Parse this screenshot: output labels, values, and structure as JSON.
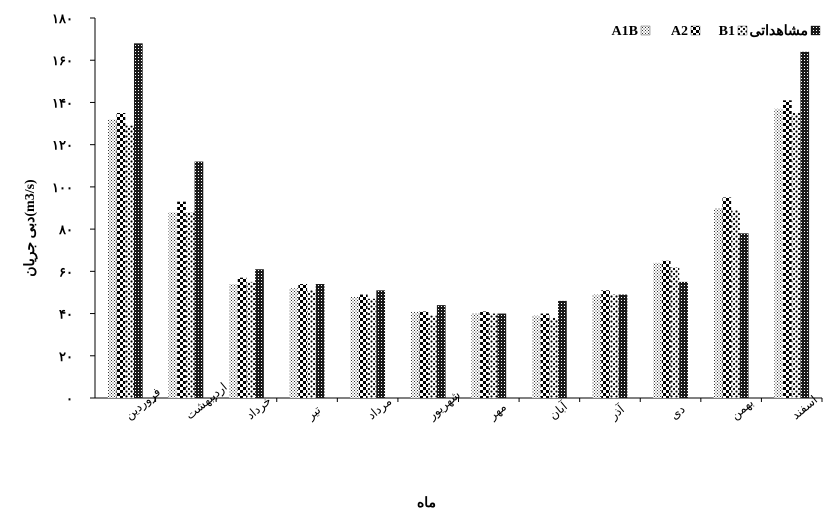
{
  "chart_data": {
    "type": "bar",
    "categories": [
      "فروردین",
      "اردیبهشت",
      "خرداد",
      "تیر",
      "مرداد",
      "شهریور",
      "مهر",
      "آبان",
      "آذر",
      "دی",
      "بهمن",
      "اسفند"
    ],
    "series": [
      {
        "name": "A1B",
        "pattern": "dots-fine",
        "values": [
          132,
          88,
          54,
          52,
          48,
          41,
          40,
          39,
          49,
          64,
          90,
          137
        ]
      },
      {
        "name": "A2",
        "pattern": "checker",
        "values": [
          135,
          93,
          57,
          54,
          49,
          41,
          41,
          40,
          51,
          65,
          95,
          141
        ]
      },
      {
        "name": "B1",
        "pattern": "dots-coarse",
        "values": [
          129,
          88,
          55,
          51,
          47,
          39,
          40,
          38,
          49,
          62,
          89,
          135
        ]
      },
      {
        "name": "مشاهداتی",
        "pattern": "grid-dark",
        "values": [
          168,
          112,
          61,
          54,
          51,
          44,
          40,
          46,
          49,
          55,
          78,
          164
        ]
      }
    ],
    "y_ticks": [
      "۰",
      "۲۰",
      "۴۰",
      "۶۰",
      "۸۰",
      "۱۰۰",
      "۱۲۰",
      "۱۴۰",
      "۱۶۰",
      "۱۸۰"
    ],
    "ylim": [
      0,
      180
    ],
    "ylabel": "دبی جریان(m3/s)",
    "xlabel": "ماه",
    "legend_position": "top-right",
    "grid": false
  }
}
